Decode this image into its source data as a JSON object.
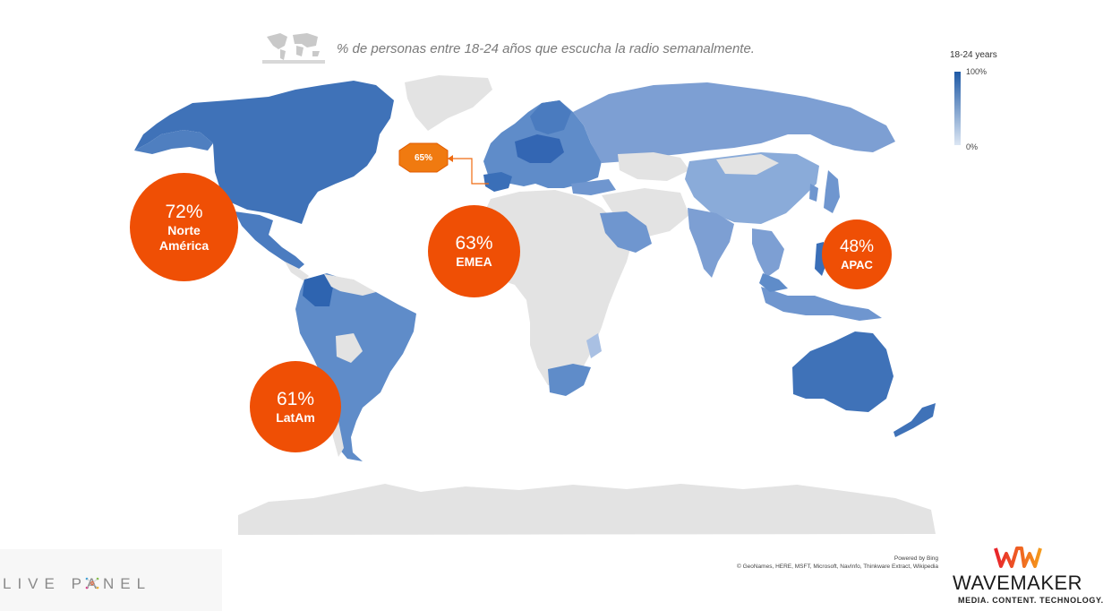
{
  "title": "% de personas entre 18-24 años que escucha la radio semanalmente.",
  "legend": {
    "title": "18-24 years",
    "max_label": "100%",
    "min_label": "0%",
    "color_high": "#1f5aa6",
    "color_low": "#dce6f3"
  },
  "colors": {
    "bubble": "#ef4f05",
    "land_no_data": "#e3e3e3",
    "blue_dark": "#3a6fb8",
    "blue_mid": "#5f8cc9",
    "blue_light": "#8faedb"
  },
  "bubbles": {
    "north_america": {
      "pct": "72%",
      "label": "Norte América"
    },
    "emea": {
      "pct": "63%",
      "label": "EMEA"
    },
    "latam": {
      "pct": "61%",
      "label": "LatAm"
    },
    "apac": {
      "pct": "48%",
      "label": "APAC"
    }
  },
  "callout": {
    "value": "65%",
    "region": "Spain"
  },
  "credits": {
    "line1": "Powered by Bing",
    "line2": "© GeoNames, HERE, MSFT, Microsoft, NavInfo, Thinkware Extract, Wikipedia"
  },
  "logos": {
    "livepanel": "LIVE PANEL",
    "wavemaker_mark": "WM",
    "wavemaker_name": "WAVEMAKER",
    "wavemaker_tagline": "MEDIA. CONTENT. TECHNOLOGY."
  }
}
